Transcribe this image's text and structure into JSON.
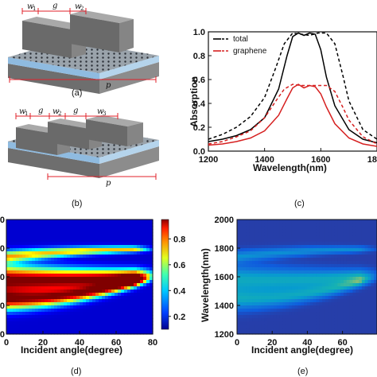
{
  "figure": {
    "panels": {
      "a": {
        "label": "(a)",
        "dims": {
          "w1": "w",
          "w1_sub": "1",
          "g": "g",
          "w2": "w",
          "w2_sub": "2",
          "p": "p"
        }
      },
      "b": {
        "label": "(b)",
        "dims": {
          "w1": "w",
          "w1_sub": "1",
          "g1": "g",
          "w2": "w",
          "w2_sub": "2",
          "g2": "g",
          "w3": "w",
          "w3_sub": "3",
          "p": "p"
        }
      },
      "c": {
        "label": "(c)"
      },
      "d": {
        "label": "(d)"
      },
      "e": {
        "label": "(e)"
      }
    },
    "colors": {
      "total": "#000000",
      "graphene": "#d62020",
      "substrate_top": "#9ec4e0",
      "substrate_side": "#6f6f6f",
      "grating": "#8a8a8a"
    }
  },
  "chart_data": [
    {
      "id": "c",
      "type": "line",
      "xlabel": "Wavelength(nm)",
      "ylabel": "Absorption",
      "xlim": [
        1200,
        1800
      ],
      "ylim": [
        0,
        1.0
      ],
      "xticks": [
        "1200",
        "1400",
        "1600",
        "18"
      ],
      "yticks": [
        "0.0",
        "0.2",
        "0.4",
        "0.6",
        "0.8",
        "1.0"
      ],
      "legend": {
        "placement": "top-left",
        "entries": [
          "total",
          "graphene"
        ]
      },
      "series": [
        {
          "name": "total",
          "style": "solid",
          "color": "#000000",
          "x": [
            1200,
            1250,
            1300,
            1350,
            1400,
            1450,
            1480,
            1500,
            1520,
            1540,
            1560,
            1580,
            1600,
            1620,
            1650,
            1700,
            1750,
            1800
          ],
          "y": [
            0.08,
            0.1,
            0.13,
            0.18,
            0.28,
            0.52,
            0.8,
            0.96,
            0.99,
            0.97,
            0.99,
            0.98,
            0.85,
            0.62,
            0.38,
            0.18,
            0.1,
            0.07
          ]
        },
        {
          "name": "total",
          "style": "dashed",
          "color": "#000000",
          "x": [
            1200,
            1250,
            1300,
            1350,
            1400,
            1440,
            1470,
            1500,
            1530,
            1560,
            1590,
            1620,
            1650,
            1680,
            1700,
            1750,
            1800
          ],
          "y": [
            0.1,
            0.14,
            0.2,
            0.29,
            0.45,
            0.7,
            0.9,
            0.99,
            0.98,
            0.97,
            0.99,
            0.99,
            0.9,
            0.62,
            0.42,
            0.18,
            0.1
          ]
        },
        {
          "name": "graphene",
          "style": "solid",
          "color": "#d62020",
          "x": [
            1200,
            1250,
            1300,
            1350,
            1400,
            1450,
            1480,
            1500,
            1520,
            1540,
            1560,
            1580,
            1600,
            1620,
            1650,
            1700,
            1750,
            1800
          ],
          "y": [
            0.05,
            0.06,
            0.08,
            0.11,
            0.17,
            0.3,
            0.44,
            0.53,
            0.56,
            0.53,
            0.55,
            0.54,
            0.48,
            0.37,
            0.23,
            0.11,
            0.06,
            0.04
          ]
        },
        {
          "name": "graphene",
          "style": "dashed",
          "color": "#d62020",
          "x": [
            1200,
            1250,
            1300,
            1350,
            1400,
            1440,
            1470,
            1500,
            1530,
            1560,
            1590,
            1620,
            1650,
            1680,
            1700,
            1750,
            1800
          ],
          "y": [
            0.06,
            0.08,
            0.12,
            0.17,
            0.28,
            0.42,
            0.52,
            0.56,
            0.55,
            0.55,
            0.55,
            0.55,
            0.5,
            0.36,
            0.26,
            0.12,
            0.06
          ]
        }
      ]
    },
    {
      "id": "d",
      "type": "heatmap",
      "xlabel": "Incident angle(degree)",
      "ylabel": "",
      "xlim": [
        0,
        80
      ],
      "ylim": [
        1200,
        2000
      ],
      "xticks": [
        "0",
        "20",
        "40",
        "60",
        "80"
      ],
      "yticks": [
        "00",
        "00",
        "00",
        "00",
        "00"
      ],
      "colorbar": {
        "min": 0.1,
        "max": 0.95,
        "ticks": [
          "0.2",
          "0.4",
          "0.6",
          "0.8"
        ]
      },
      "bands": [
        {
          "y0": 1580,
          "slope": -0.35,
          "curve": 0.01,
          "width": 95,
          "amp": 0.95
        },
        {
          "y0": 1440,
          "slope": 0.0,
          "curve": 0.025,
          "width": 70,
          "amp": 0.85
        },
        {
          "y0": 1740,
          "slope": 1.3,
          "curve": -0.008,
          "width": 40,
          "amp": 0.6
        }
      ]
    },
    {
      "id": "e",
      "type": "heatmap",
      "xlabel": "Incident angle(degree)",
      "ylabel": "Wavelength(nm)",
      "xlim": [
        0,
        80
      ],
      "ylim": [
        1200,
        2000
      ],
      "xticks": [
        "0",
        "20",
        "40",
        "60"
      ],
      "yticks": [
        "1200",
        "1400",
        "1600",
        "1800",
        "2000"
      ],
      "bands": [
        {
          "y0": 1580,
          "slope": -0.35,
          "curve": 0.01,
          "width": 95,
          "amp": 0.55
        },
        {
          "y0": 1440,
          "slope": 0.0,
          "curve": 0.025,
          "width": 70,
          "amp": 0.5
        },
        {
          "y0": 1740,
          "slope": 1.3,
          "curve": -0.008,
          "width": 40,
          "amp": 0.4
        }
      ]
    }
  ]
}
